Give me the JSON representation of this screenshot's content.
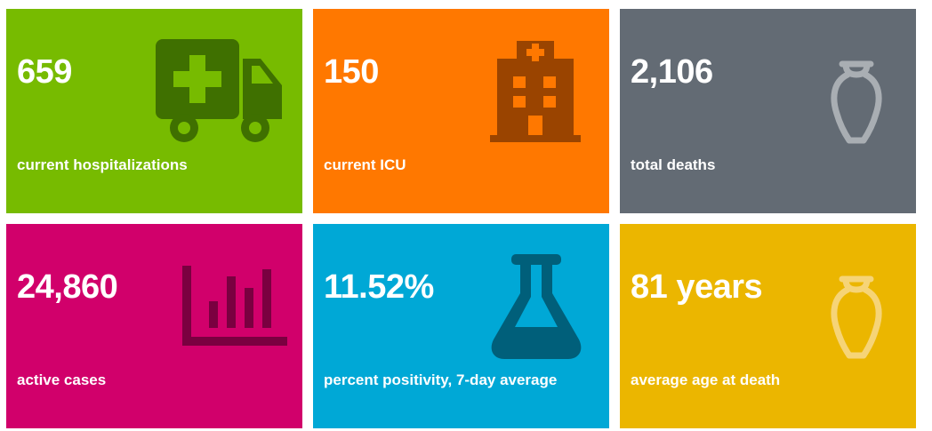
{
  "tiles": [
    {
      "value": "659",
      "label": "current hospitalizations",
      "icon": "ambulance-icon",
      "color": "#77bb00"
    },
    {
      "value": "150",
      "label": "current ICU",
      "icon": "hospital-icon",
      "color": "#ff7800"
    },
    {
      "value": "2,106",
      "label": "total deaths",
      "icon": "urn-icon",
      "color": "#636b74"
    },
    {
      "value": "24,860",
      "label": "active cases",
      "icon": "bar-chart-icon",
      "color": "#d1006b"
    },
    {
      "value": "11.52%",
      "label": "percent positivity, 7-day average",
      "icon": "flask-icon",
      "color": "#00a8d6"
    },
    {
      "value": "81 years",
      "label": "average age at death",
      "icon": "urn-icon",
      "color": "#ebb600"
    }
  ]
}
